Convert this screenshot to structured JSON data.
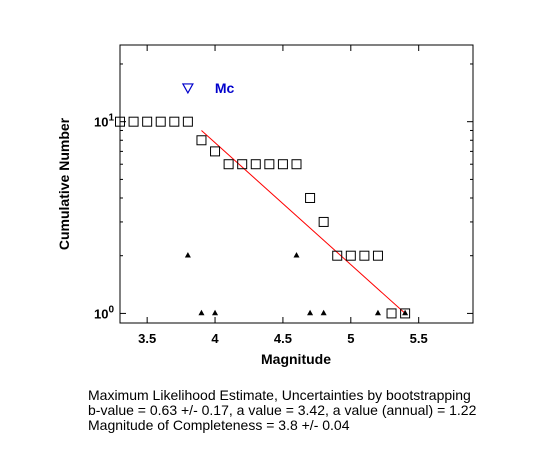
{
  "chart_data": {
    "type": "scatter",
    "xlabel": "Magnitude",
    "ylabel": "Cumulative Number",
    "xlim": [
      3.3,
      5.9
    ],
    "ylim_log10": [
      -0.05,
      1.4
    ],
    "y_scale": "log",
    "grid": false,
    "x_ticks": [
      {
        "value": 3.5,
        "label": "3.5"
      },
      {
        "value": 4.0,
        "label": "4"
      },
      {
        "value": 4.5,
        "label": "4.5"
      },
      {
        "value": 5.0,
        "label": "5"
      },
      {
        "value": 5.5,
        "label": "5.5"
      }
    ],
    "y_ticks": [
      {
        "value": 1,
        "label": "10",
        "exp": "0"
      },
      {
        "value": 10,
        "label": "10",
        "exp": "1"
      }
    ],
    "series": [
      {
        "marker": "square",
        "x": [
          3.3,
          3.4,
          3.5,
          3.6,
          3.7,
          3.8,
          3.9,
          4.0,
          4.1,
          4.2,
          4.3,
          4.4,
          4.5,
          4.6,
          4.7,
          4.8,
          4.9,
          5.0,
          5.1,
          5.2,
          5.3,
          5.4
        ],
        "y": [
          10,
          10,
          10,
          10,
          10,
          10,
          8,
          7,
          6,
          6,
          6,
          6,
          6,
          6,
          4,
          3,
          2,
          2,
          2,
          2,
          1,
          1
        ]
      },
      {
        "marker": "triangle",
        "x": [
          3.8,
          3.9,
          4.0,
          4.6,
          4.7,
          4.8,
          5.2,
          5.4
        ],
        "y": [
          2,
          1,
          1,
          2,
          1,
          1,
          1,
          1
        ]
      }
    ],
    "fit_line": {
      "x": [
        3.9,
        5.4
      ],
      "y": [
        9.0,
        1.0
      ],
      "color": "#ff0000"
    },
    "mc_marker": {
      "x": 3.8,
      "y": 15,
      "label": "Mc",
      "color": "#0000cc"
    }
  },
  "stats": {
    "line1": "Maximum Likelihood Estimate, Uncertainties by bootstrapping",
    "line2": "b-value = 0.63 +/- 0.17,  a value = 3.42,  a value (annual) = 1.22",
    "line3": "Magnitude of Completeness = 3.8 +/- 0.04"
  }
}
